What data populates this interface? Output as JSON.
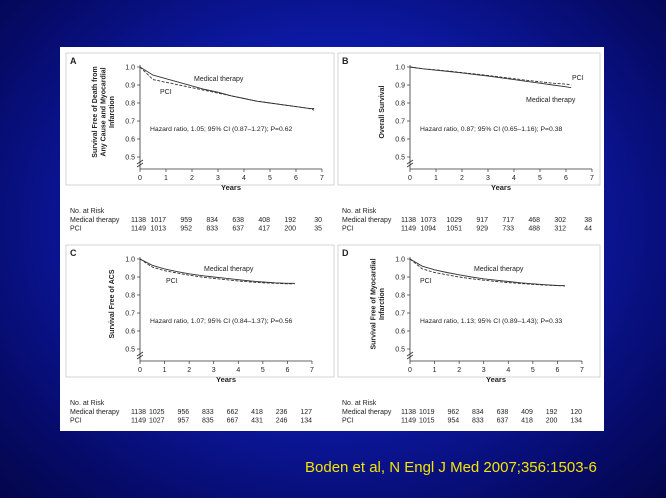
{
  "citation": "Boden et al, N Engl J Med 2007;356:1503-6",
  "colors": {
    "background": "#0d1aa8",
    "citation": "#f5e400",
    "figure": "#ffffff"
  },
  "chart_data": [
    {
      "type": "line",
      "panel_label": "A",
      "ylabel": "Survival Free of Death from Any Cause and Myocardial Infarction",
      "ylabel_lines": [
        "Survival Free of Death from",
        "Any Cause and Myocardial",
        "Infarction"
      ],
      "xlabel": "Years",
      "xlim": [
        0,
        7
      ],
      "ylim": [
        0.5,
        1.0
      ],
      "xticks": [
        "0",
        "1",
        "2",
        "3",
        "4",
        "5",
        "6",
        "7"
      ],
      "yticks": [
        "0.5",
        "0.6",
        "0.7",
        "0.8",
        "0.9",
        "1.0"
      ],
      "y_axis_break": true,
      "grid": false,
      "annotation": "Hazard ratio, 1.05; 95% CI (0.87–1.27); P=0.62",
      "series": [
        {
          "name": "Medical therapy",
          "x": [
            0,
            0.5,
            1,
            1.5,
            2,
            2.5,
            3,
            3.5,
            4,
            4.5,
            5,
            5.5,
            6,
            6.5,
            6.7
          ],
          "y": [
            1.0,
            0.955,
            0.935,
            0.915,
            0.895,
            0.875,
            0.86,
            0.84,
            0.825,
            0.81,
            0.8,
            0.79,
            0.78,
            0.77,
            0.77
          ]
        },
        {
          "name": "PCI",
          "x": [
            0,
            0.5,
            1,
            1.5,
            2,
            2.5,
            3,
            3.5,
            4,
            4.5,
            5,
            5.5,
            6,
            6.5,
            6.7
          ],
          "y": [
            1.0,
            0.93,
            0.915,
            0.9,
            0.885,
            0.87,
            0.855,
            0.84,
            0.825,
            0.81,
            0.8,
            0.79,
            0.78,
            0.77,
            0.76
          ]
        }
      ],
      "risk_title": "No. at Risk",
      "risk": [
        {
          "name": "Medical therapy",
          "values": [
            "1138",
            "1017",
            "959",
            "834",
            "638",
            "408",
            "192",
            "30"
          ]
        },
        {
          "name": "PCI",
          "values": [
            "1149",
            "1013",
            "952",
            "833",
            "637",
            "417",
            "200",
            "35"
          ]
        }
      ]
    },
    {
      "type": "line",
      "panel_label": "B",
      "ylabel": "Overall Survival",
      "ylabel_lines": [
        "Overall Survival"
      ],
      "xlabel": "Years",
      "xlim": [
        0,
        7
      ],
      "ylim": [
        0.5,
        1.0
      ],
      "xticks": [
        "0",
        "1",
        "2",
        "3",
        "4",
        "5",
        "6",
        "7"
      ],
      "yticks": [
        "0.5",
        "0.6",
        "0.7",
        "0.8",
        "0.9",
        "1.0"
      ],
      "y_axis_break": true,
      "grid": false,
      "annotation": "Hazard ratio, 0.87; 95% CI (0.65–1.16); P=0.38",
      "series": [
        {
          "name": "Medical therapy",
          "x": [
            0,
            0.5,
            1,
            1.5,
            2,
            2.5,
            3,
            3.5,
            4,
            4.5,
            5,
            5.5,
            6,
            6.2
          ],
          "y": [
            1.0,
            0.99,
            0.982,
            0.975,
            0.967,
            0.958,
            0.95,
            0.94,
            0.93,
            0.92,
            0.91,
            0.9,
            0.89,
            0.885
          ]
        },
        {
          "name": "PCI",
          "x": [
            0,
            0.5,
            1,
            1.5,
            2,
            2.5,
            3,
            3.5,
            4,
            4.5,
            5,
            5.5,
            6,
            6.2
          ],
          "y": [
            1.0,
            0.99,
            0.984,
            0.977,
            0.969,
            0.961,
            0.953,
            0.944,
            0.935,
            0.926,
            0.918,
            0.91,
            0.905,
            0.9
          ]
        }
      ],
      "risk_title": "No. at Risk",
      "risk": [
        {
          "name": "Medical therapy",
          "values": [
            "1138",
            "1073",
            "1029",
            "917",
            "717",
            "468",
            "302",
            "38"
          ]
        },
        {
          "name": "PCI",
          "values": [
            "1149",
            "1094",
            "1051",
            "929",
            "733",
            "488",
            "312",
            "44"
          ]
        }
      ]
    },
    {
      "type": "line",
      "panel_label": "C",
      "ylabel": "Survival Free of ACS",
      "ylabel_lines": [
        "Survival Free of ACS"
      ],
      "xlabel": "Years",
      "xlim": [
        0,
        7
      ],
      "ylim": [
        0.5,
        1.0
      ],
      "xticks": [
        "0",
        "1",
        "2",
        "3",
        "4",
        "5",
        "6",
        "7"
      ],
      "yticks": [
        "0.5",
        "0.6",
        "0.7",
        "0.8",
        "0.9",
        "1.0"
      ],
      "y_axis_break": true,
      "grid": false,
      "annotation": "Hazard ratio, 1.07; 95% CI (0.84–1.37); P=0.56",
      "series": [
        {
          "name": "Medical therapy",
          "x": [
            0,
            0.5,
            1,
            1.5,
            2,
            2.5,
            3,
            3.5,
            4,
            4.5,
            5,
            5.5,
            6,
            6.3
          ],
          "y": [
            1.0,
            0.965,
            0.945,
            0.93,
            0.918,
            0.908,
            0.9,
            0.893,
            0.885,
            0.878,
            0.872,
            0.868,
            0.865,
            0.865
          ]
        },
        {
          "name": "PCI",
          "x": [
            0,
            0.5,
            1,
            1.5,
            2,
            2.5,
            3,
            3.5,
            4,
            4.5,
            5,
            5.5,
            6,
            6.3
          ],
          "y": [
            1.0,
            0.955,
            0.935,
            0.922,
            0.91,
            0.9,
            0.892,
            0.885,
            0.878,
            0.872,
            0.868,
            0.865,
            0.862,
            0.862
          ]
        }
      ],
      "risk_title": "No. at Risk",
      "risk": [
        {
          "name": "Medical therapy",
          "values": [
            "1138",
            "1025",
            "956",
            "833",
            "662",
            "418",
            "236",
            "127"
          ]
        },
        {
          "name": "PCI",
          "values": [
            "1149",
            "1027",
            "957",
            "835",
            "667",
            "431",
            "246",
            "134"
          ]
        }
      ]
    },
    {
      "type": "line",
      "panel_label": "D",
      "ylabel": "Survival Free of Myocardial Infarction",
      "ylabel_lines": [
        "Survival Free of Myocardial",
        "Infarction"
      ],
      "xlabel": "Years",
      "xlim": [
        0,
        7
      ],
      "ylim": [
        0.5,
        1.0
      ],
      "xticks": [
        "0",
        "1",
        "2",
        "3",
        "4",
        "5",
        "6",
        "7"
      ],
      "yticks": [
        "0.5",
        "0.6",
        "0.7",
        "0.8",
        "0.9",
        "1.0"
      ],
      "y_axis_break": true,
      "grid": false,
      "annotation": "Hazard ratio, 1.13; 95% CI (0.89–1.43); P=0.33",
      "series": [
        {
          "name": "Medical therapy",
          "x": [
            0,
            0.5,
            1,
            1.5,
            2,
            2.5,
            3,
            3.5,
            4,
            4.5,
            5,
            5.5,
            6,
            6.3
          ],
          "y": [
            1.0,
            0.96,
            0.94,
            0.925,
            0.912,
            0.9,
            0.89,
            0.882,
            0.875,
            0.868,
            0.862,
            0.857,
            0.853,
            0.852
          ]
        },
        {
          "name": "PCI",
          "x": [
            0,
            0.5,
            1,
            1.5,
            2,
            2.5,
            3,
            3.5,
            4,
            4.5,
            5,
            5.5,
            6,
            6.3
          ],
          "y": [
            1.0,
            0.945,
            0.925,
            0.912,
            0.9,
            0.89,
            0.882,
            0.875,
            0.869,
            0.864,
            0.859,
            0.855,
            0.852,
            0.85
          ]
        }
      ],
      "risk_title": "No. at Risk",
      "risk": [
        {
          "name": "Medical therapy",
          "values": [
            "1138",
            "1019",
            "962",
            "834",
            "638",
            "409",
            "192",
            "120"
          ]
        },
        {
          "name": "PCI",
          "values": [
            "1149",
            "1015",
            "954",
            "833",
            "637",
            "418",
            "200",
            "134"
          ]
        }
      ]
    }
  ]
}
